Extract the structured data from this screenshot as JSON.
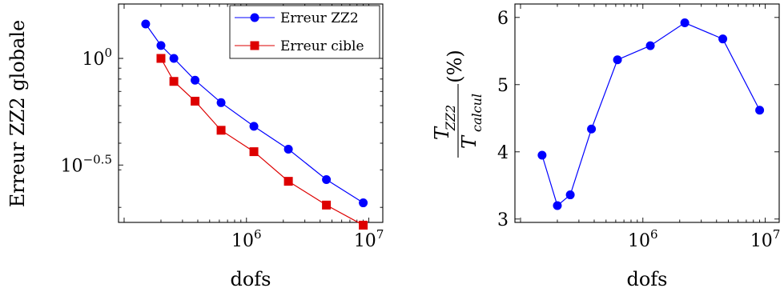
{
  "chart_data": [
    {
      "type": "line",
      "xlabel": "dofs",
      "ylabel": "Erreur ZZ2 globale",
      "xscale": "log",
      "yscale": "log",
      "xlim": [
        90000,
        13000000
      ],
      "ylim": [
        0.17,
        1.8
      ],
      "xticks": [
        {
          "value": 1000000,
          "base": "10",
          "exp": "6"
        },
        {
          "value": 10000000,
          "base": "10",
          "exp": "7"
        }
      ],
      "yticks": [
        {
          "value": 1.0,
          "base": "10",
          "exp": "0"
        },
        {
          "value": 0.316,
          "base": "10",
          "exp": "−0.5"
        }
      ],
      "legend_position": "top-right",
      "grid": false,
      "series": [
        {
          "name": "Erreur ZZ2",
          "color": "#0000ff",
          "marker": "circle",
          "x": [
            150000,
            200000,
            255000,
            380000,
            620000,
            1150000,
            2200000,
            4500000,
            9000000
          ],
          "y": [
            1.45,
            1.15,
            1.0,
            0.79,
            0.62,
            0.48,
            0.375,
            0.27,
            0.21
          ]
        },
        {
          "name": "Erreur cible",
          "color": "#dd0000",
          "marker": "square",
          "x": [
            200000,
            255000,
            380000,
            620000,
            1150000,
            2200000,
            4500000,
            9000000
          ],
          "y": [
            1.0,
            0.78,
            0.63,
            0.46,
            0.365,
            0.265,
            0.205,
            0.165
          ]
        }
      ]
    },
    {
      "type": "line",
      "xlabel": "dofs",
      "ylabel": {
        "num_main": "T",
        "num_sub": "ZZ2",
        "den_main": "T",
        "den_sub": "calcul",
        "suffix": "(%)"
      },
      "xscale": "log",
      "xlim": [
        90000,
        13000000
      ],
      "ylim": [
        2.95,
        6.2
      ],
      "xticks": [
        {
          "value": 1000000,
          "base": "10",
          "exp": "6"
        },
        {
          "value": 10000000,
          "base": "10",
          "exp": "7"
        }
      ],
      "yticks": [
        3,
        4,
        5,
        6
      ],
      "grid": false,
      "series": [
        {
          "color": "#0000ff",
          "marker": "circle",
          "x": [
            150000,
            200000,
            255000,
            380000,
            620000,
            1150000,
            2200000,
            4500000,
            9000000
          ],
          "y": [
            3.95,
            3.2,
            3.36,
            4.34,
            5.37,
            5.58,
            5.92,
            5.68,
            4.62
          ]
        }
      ]
    }
  ]
}
